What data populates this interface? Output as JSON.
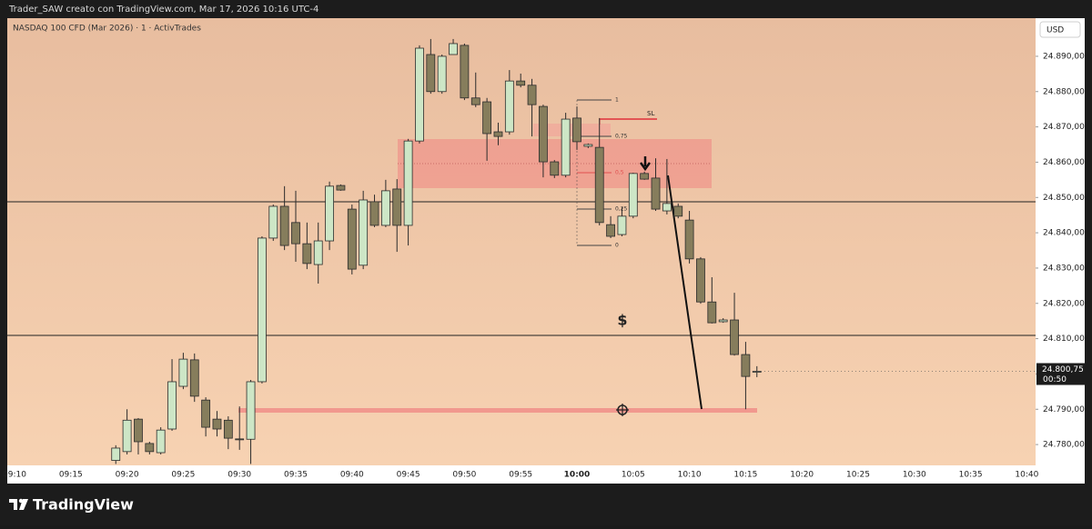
{
  "header": {
    "caption": "Trader_SAW creato con TradingView.com, Mar 17, 2026 10:16 UTC-4",
    "brand": "TradingView"
  },
  "chart_data": {
    "type": "candlestick",
    "title": "NASDAQ 100 CFD (Mar 2026) · 1 · ActivTrades",
    "currency": "USD",
    "up_color": "#cde6c6",
    "down_color": "#867d5c",
    "wick_color": "#2b2b2b",
    "x": [
      "09:19",
      "09:20",
      "09:21",
      "09:22",
      "09:23",
      "09:24",
      "09:25",
      "09:26",
      "09:27",
      "09:28",
      "09:29",
      "09:30",
      "09:31",
      "09:32",
      "09:33",
      "09:34",
      "09:35",
      "09:36",
      "09:37",
      "09:38",
      "09:39",
      "09:40",
      "09:41",
      "09:42",
      "09:43",
      "09:44",
      "09:45",
      "09:46",
      "09:47",
      "09:48",
      "09:49",
      "09:50",
      "09:51",
      "09:52",
      "09:53",
      "09:54",
      "09:55",
      "09:56",
      "09:57",
      "09:58",
      "09:59",
      "10:00",
      "10:01",
      "10:02",
      "10:03",
      "10:04",
      "10:05",
      "10:06",
      "10:07",
      "10:08",
      "10:09",
      "10:10",
      "10:11",
      "10:12",
      "10:13",
      "10:14",
      "10:15",
      "10:16"
    ],
    "open": [
      24775.5,
      24778.0,
      24787.2,
      24780.3,
      24777.7,
      24784.4,
      24796.5,
      24804.0,
      24792.6,
      24787.2,
      24786.9,
      24781.6,
      24781.5,
      24797.8,
      24838.5,
      24847.5,
      24842.9,
      24836.9,
      24831.0,
      24837.7,
      24853.4,
      24846.7,
      24830.8,
      24848.8,
      24842.1,
      24852.4,
      24842.1,
      24866.0,
      24890.5,
      24880.0,
      24890.5,
      24893.1,
      24878.2,
      24877.1,
      24868.6,
      24868.6,
      24883.0,
      24881.8,
      24875.8,
      24860.1,
      24856.3,
      24872.5,
      24864.5,
      24864.2,
      24842.3,
      24839.5,
      24844.7,
      24856.8,
      24855.5,
      24846.2,
      24847.5,
      24843.6,
      24832.6,
      24820.4,
      24814.8,
      24815.3,
      24805.5,
      24800.5
    ],
    "high": [
      24779.8,
      24790.0,
      24787.5,
      24780.8,
      24784.9,
      24804.2,
      24806.0,
      24805.8,
      24793.4,
      24789.5,
      24788.0,
      24790.8,
      24798.3,
      24839.0,
      24848.0,
      24853.2,
      24851.9,
      24842.9,
      24842.9,
      24854.5,
      24853.7,
      24848.0,
      24851.9,
      24850.8,
      24855.0,
      24855.2,
      24866.6,
      24893.1,
      24894.9,
      24890.5,
      24894.9,
      24893.6,
      24885.4,
      24878.2,
      24871.2,
      24886.1,
      24885.1,
      24883.6,
      24876.3,
      24860.6,
      24874.0,
      24875.8,
      24865.3,
      24872.5,
      24844.7,
      24847.2,
      24857.0,
      24857.3,
      24861.1,
      24860.9,
      24848.3,
      24846.2,
      24833.1,
      24827.4,
      24815.8,
      24823.0,
      24809.1,
      24802.2
    ],
    "low": [
      24774.5,
      24777.2,
      24777.2,
      24777.2,
      24777.2,
      24783.9,
      24795.7,
      24792.1,
      24782.3,
      24782.3,
      24778.7,
      24778.5,
      24774.5,
      24797.3,
      24837.7,
      24835.1,
      24831.8,
      24829.7,
      24825.6,
      24835.1,
      24851.9,
      24828.2,
      24829.7,
      24841.6,
      24841.6,
      24834.6,
      24836.4,
      24865.3,
      24879.4,
      24879.4,
      24890.5,
      24877.6,
      24875.6,
      24860.4,
      24864.8,
      24867.8,
      24881.2,
      24867.3,
      24855.7,
      24855.5,
      24855.7,
      24863.5,
      24864.0,
      24842.1,
      24838.5,
      24839.0,
      24844.1,
      24855.0,
      24846.2,
      24845.2,
      24844.1,
      24831.3,
      24819.9,
      24814.3,
      24814.5,
      24805.2,
      24790.0,
      24799.1
    ],
    "close": [
      24779.0,
      24786.9,
      24780.8,
      24778.0,
      24784.1,
      24797.8,
      24804.2,
      24793.7,
      24784.9,
      24784.4,
      24781.8,
      24781.4,
      24797.8,
      24838.5,
      24847.5,
      24836.4,
      24836.9,
      24831.3,
      24837.7,
      24853.2,
      24852.1,
      24829.7,
      24849.3,
      24842.1,
      24851.9,
      24842.1,
      24866.0,
      24892.3,
      24880.0,
      24890.0,
      24893.6,
      24878.2,
      24876.3,
      24868.1,
      24867.3,
      24883.0,
      24881.8,
      24876.3,
      24860.1,
      24856.3,
      24872.2,
      24865.8,
      24865.0,
      24842.9,
      24839.0,
      24844.7,
      24856.8,
      24855.2,
      24846.7,
      24848.3,
      24844.7,
      24832.6,
      24820.4,
      24814.5,
      24815.3,
      24805.5,
      24799.3,
      24800.75
    ],
    "ylim": [
      24774.1,
      24900.8
    ],
    "yticks": [
      {
        "value": 24780,
        "label": "24.780,00"
      },
      {
        "value": 24790,
        "label": "24.790,00"
      },
      {
        "value": 24800,
        "label": "24.800,00"
      },
      {
        "value": 24810,
        "label": "24.810,00"
      },
      {
        "value": 24820,
        "label": "24.820,00"
      },
      {
        "value": 24830,
        "label": "24.830,00"
      },
      {
        "value": 24840,
        "label": "24.840,00"
      },
      {
        "value": 24850,
        "label": "24.850,00"
      },
      {
        "value": 24860,
        "label": "24.860,00"
      },
      {
        "value": 24870,
        "label": "24.870,00"
      },
      {
        "value": 24880,
        "label": "24.880,00"
      },
      {
        "value": 24890,
        "label": "24.890,00"
      }
    ],
    "xticks": [
      "09:10",
      "09:15",
      "09:20",
      "09:25",
      "09:30",
      "09:35",
      "09:40",
      "09:45",
      "09:50",
      "09:55",
      "10:00",
      "10:05",
      "10:10",
      "10:15",
      "10:20",
      "10:25",
      "10:30",
      "10:35",
      "10:40"
    ],
    "last_price": {
      "value": 24800.75,
      "label": "24.800,75"
    },
    "countdown": "00:50",
    "fib_labels": [
      "1",
      "0,75",
      "0,5",
      "0,25",
      "0"
    ],
    "sl_label": "SL",
    "dollar_label": "$"
  }
}
